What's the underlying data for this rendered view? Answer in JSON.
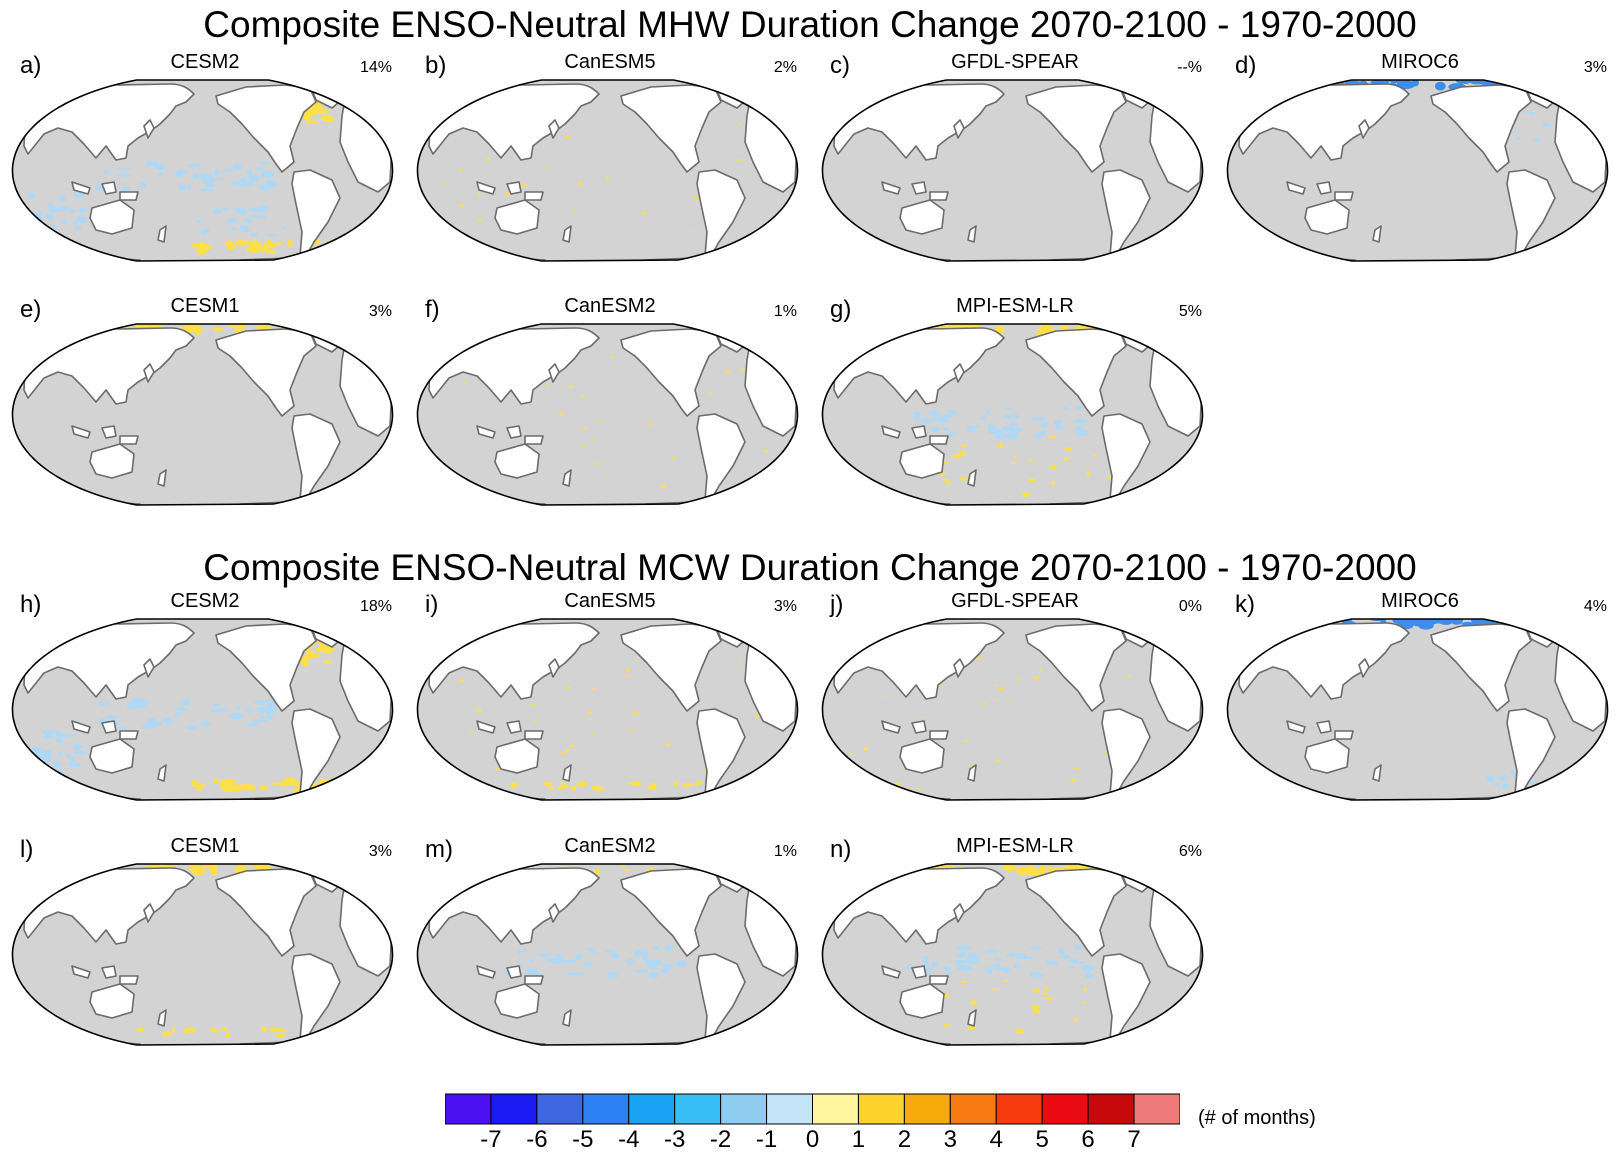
{
  "titles": {
    "mhw": "Composite ENSO-Neutral MHW Duration Change 2070-2100 - 1970-2000",
    "mcw": "Composite ENSO-Neutral MCW Duration Change 2070-2100 - 1970-2000"
  },
  "panels": [
    {
      "letter": "a)",
      "model": "CESM2",
      "pct": "14%",
      "anomalies": [
        [
          "pos",
          "north-atlantic"
        ],
        [
          "pos",
          "labrador"
        ],
        [
          "neg",
          "tropical-pacific"
        ],
        [
          "neg",
          "south-indian"
        ],
        [
          "neg",
          "south-pacific"
        ],
        [
          "pos",
          "southern-ocean"
        ]
      ]
    },
    {
      "letter": "b)",
      "model": "CanESM5",
      "pct": "2%",
      "anomalies": [
        [
          "neg",
          "arctic-atlantic"
        ],
        [
          "pos",
          "weak-scatter"
        ]
      ]
    },
    {
      "letter": "c)",
      "model": "GFDL-SPEAR",
      "pct": "--%",
      "anomalies": []
    },
    {
      "letter": "d)",
      "model": "MIROC6",
      "pct": "3%",
      "anomalies": [
        [
          "neg",
          "arctic-strong"
        ],
        [
          "neg",
          "north-atlantic-light"
        ]
      ]
    },
    {
      "letter": "e)",
      "model": "CESM1",
      "pct": "3%",
      "anomalies": [
        [
          "pos",
          "arctic"
        ]
      ]
    },
    {
      "letter": "f)",
      "model": "CanESM2",
      "pct": "1%",
      "anomalies": [
        [
          "pos",
          "labrador"
        ],
        [
          "pos",
          "weak-scatter"
        ]
      ]
    },
    {
      "letter": "g)",
      "model": "MPI-ESM-LR",
      "pct": "5%",
      "anomalies": [
        [
          "pos",
          "arctic"
        ],
        [
          "neg",
          "tropical-pacific"
        ],
        [
          "pos",
          "south-pacific-spots"
        ]
      ]
    },
    {
      "letter": "h)",
      "model": "CESM2",
      "pct": "18%",
      "anomalies": [
        [
          "pos",
          "north-atlantic"
        ],
        [
          "neg",
          "tropical-pacific"
        ],
        [
          "neg",
          "south-indian"
        ],
        [
          "pos",
          "southern-ocean"
        ]
      ]
    },
    {
      "letter": "i)",
      "model": "CanESM5",
      "pct": "3%",
      "anomalies": [
        [
          "pos",
          "weak-scatter"
        ],
        [
          "neg",
          "arctic-atlantic"
        ],
        [
          "pos",
          "southern-ocean-light"
        ]
      ]
    },
    {
      "letter": "j)",
      "model": "GFDL-SPEAR",
      "pct": "0%",
      "anomalies": [
        [
          "pos",
          "weak-scatter"
        ]
      ]
    },
    {
      "letter": "k)",
      "model": "MIROC6",
      "pct": "4%",
      "anomalies": [
        [
          "neg",
          "arctic-strong"
        ],
        [
          "neg",
          "south-atlantic"
        ]
      ]
    },
    {
      "letter": "l)",
      "model": "CESM1",
      "pct": "3%",
      "anomalies": [
        [
          "pos",
          "arctic"
        ],
        [
          "pos",
          "southern-ocean-light"
        ]
      ]
    },
    {
      "letter": "m)",
      "model": "CanESM2",
      "pct": "1%",
      "anomalies": [
        [
          "pos",
          "arctic-light"
        ],
        [
          "neg",
          "tropical-pacific"
        ]
      ]
    },
    {
      "letter": "n)",
      "model": "MPI-ESM-LR",
      "pct": "6%",
      "anomalies": [
        [
          "pos",
          "arctic"
        ],
        [
          "neg",
          "tropical-pacific"
        ],
        [
          "pos",
          "south-pacific-spots"
        ]
      ]
    }
  ],
  "colorbar": {
    "colors": [
      "#4a10f0",
      "#1a1af2",
      "#3f67e4",
      "#2c82f5",
      "#18a3f5",
      "#38bdf4",
      "#8ecdf0",
      "#c4e4f7",
      "#fff59c",
      "#fdd22c",
      "#f7aa0c",
      "#f77a10",
      "#f63c0f",
      "#ea0a12",
      "#c60a0c",
      "#ef7a7a"
    ],
    "ticks": [
      "-7",
      "-6",
      "-5",
      "-4",
      "-3",
      "-2",
      "-1",
      "0",
      "1",
      "2",
      "3",
      "4",
      "5",
      "6",
      "7"
    ],
    "units": "(# of months)"
  },
  "map_colors": {
    "ocean": "#d3d3d3",
    "land": "#ffffff",
    "coast": "#6b6b6b",
    "frame": "#000000",
    "positive": "#fde047",
    "negative": "#aed8f4",
    "strong_negative": "#3d8ee8"
  }
}
